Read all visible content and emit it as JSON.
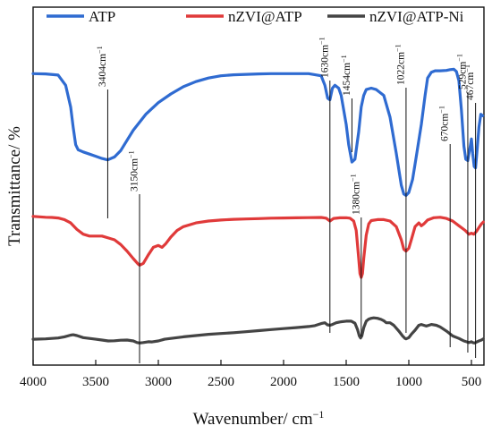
{
  "chart_data": {
    "type": "line",
    "xlabel": "Wavenumber/ cm",
    "xlabel_sup": "−1",
    "ylabel": "Transmittance/ %",
    "xlim": [
      4000,
      400
    ],
    "x_ticks": [
      4000,
      3500,
      3000,
      2500,
      2000,
      1500,
      1000,
      500
    ],
    "x_tick_labels": [
      "4000",
      "3500",
      "3000",
      "2500",
      "2000",
      "1500",
      "1000",
      "500"
    ],
    "y_ticks": "none",
    "grid": false,
    "legend_placement": "top",
    "series": [
      {
        "name": "ATP",
        "color": "#2f6bd1",
        "points": [
          [
            4000,
            0.15
          ],
          [
            3900,
            0.152
          ],
          [
            3800,
            0.16
          ],
          [
            3740,
            0.23
          ],
          [
            3700,
            0.38
          ],
          [
            3680,
            0.52
          ],
          [
            3660,
            0.64
          ],
          [
            3640,
            0.675
          ],
          [
            3600,
            0.69
          ],
          [
            3550,
            0.705
          ],
          [
            3500,
            0.72
          ],
          [
            3450,
            0.735
          ],
          [
            3404,
            0.745
          ],
          [
            3350,
            0.725
          ],
          [
            3300,
            0.68
          ],
          [
            3250,
            0.61
          ],
          [
            3200,
            0.54
          ],
          [
            3100,
            0.43
          ],
          [
            3000,
            0.35
          ],
          [
            2900,
            0.29
          ],
          [
            2800,
            0.24
          ],
          [
            2700,
            0.205
          ],
          [
            2600,
            0.18
          ],
          [
            2500,
            0.165
          ],
          [
            2400,
            0.158
          ],
          [
            2300,
            0.155
          ],
          [
            2200,
            0.152
          ],
          [
            2100,
            0.15
          ],
          [
            2000,
            0.15
          ],
          [
            1900,
            0.15
          ],
          [
            1800,
            0.15
          ],
          [
            1700,
            0.165
          ],
          [
            1670,
            0.23
          ],
          [
            1648,
            0.32
          ],
          [
            1630,
            0.33
          ],
          [
            1610,
            0.25
          ],
          [
            1590,
            0.23
          ],
          [
            1560,
            0.25
          ],
          [
            1540,
            0.3
          ],
          [
            1500,
            0.5
          ],
          [
            1480,
            0.64
          ],
          [
            1454,
            0.76
          ],
          [
            1430,
            0.74
          ],
          [
            1400,
            0.55
          ],
          [
            1380,
            0.38
          ],
          [
            1360,
            0.3
          ],
          [
            1340,
            0.26
          ],
          [
            1300,
            0.25
          ],
          [
            1260,
            0.26
          ],
          [
            1200,
            0.3
          ],
          [
            1150,
            0.45
          ],
          [
            1100,
            0.7
          ],
          [
            1060,
            0.92
          ],
          [
            1040,
            0.98
          ],
          [
            1022,
            0.99
          ],
          [
            1000,
            0.97
          ],
          [
            970,
            0.88
          ],
          [
            940,
            0.72
          ],
          [
            900,
            0.5
          ],
          [
            870,
            0.3
          ],
          [
            850,
            0.18
          ],
          [
            820,
            0.14
          ],
          [
            790,
            0.13
          ],
          [
            750,
            0.13
          ],
          [
            700,
            0.128
          ],
          [
            670,
            0.122
          ],
          [
            640,
            0.12
          ],
          [
            620,
            0.135
          ],
          [
            600,
            0.2
          ],
          [
            580,
            0.4
          ],
          [
            560,
            0.65
          ],
          [
            545,
            0.74
          ],
          [
            529,
            0.75
          ],
          [
            515,
            0.68
          ],
          [
            500,
            0.6
          ],
          [
            490,
            0.7
          ],
          [
            478,
            0.79
          ],
          [
            467,
            0.8
          ],
          [
            455,
            0.68
          ],
          [
            440,
            0.52
          ],
          [
            425,
            0.43
          ],
          [
            410,
            0.44
          ]
        ]
      },
      {
        "name": "nZVI@ATP",
        "color": "#e03a3a",
        "points": [
          [
            4000,
            0.35
          ],
          [
            3950,
            0.355
          ],
          [
            3900,
            0.36
          ],
          [
            3850,
            0.362
          ],
          [
            3800,
            0.368
          ],
          [
            3750,
            0.385
          ],
          [
            3700,
            0.42
          ],
          [
            3650,
            0.49
          ],
          [
            3600,
            0.54
          ],
          [
            3550,
            0.56
          ],
          [
            3500,
            0.56
          ],
          [
            3450,
            0.56
          ],
          [
            3400,
            0.58
          ],
          [
            3350,
            0.6
          ],
          [
            3300,
            0.65
          ],
          [
            3250,
            0.72
          ],
          [
            3200,
            0.8
          ],
          [
            3160,
            0.86
          ],
          [
            3150,
            0.87
          ],
          [
            3120,
            0.85
          ],
          [
            3080,
            0.76
          ],
          [
            3040,
            0.68
          ],
          [
            3000,
            0.66
          ],
          [
            2970,
            0.68
          ],
          [
            2940,
            0.64
          ],
          [
            2900,
            0.57
          ],
          [
            2850,
            0.5
          ],
          [
            2800,
            0.46
          ],
          [
            2700,
            0.42
          ],
          [
            2600,
            0.4
          ],
          [
            2500,
            0.39
          ],
          [
            2400,
            0.382
          ],
          [
            2300,
            0.378
          ],
          [
            2200,
            0.374
          ],
          [
            2100,
            0.37
          ],
          [
            2000,
            0.368
          ],
          [
            1900,
            0.366
          ],
          [
            1800,
            0.364
          ],
          [
            1700,
            0.362
          ],
          [
            1660,
            0.37
          ],
          [
            1630,
            0.4
          ],
          [
            1600,
            0.372
          ],
          [
            1550,
            0.366
          ],
          [
            1500,
            0.365
          ],
          [
            1470,
            0.37
          ],
          [
            1440,
            0.4
          ],
          [
            1420,
            0.5
          ],
          [
            1400,
            0.8
          ],
          [
            1390,
            0.96
          ],
          [
            1380,
            1.0
          ],
          [
            1370,
            0.96
          ],
          [
            1360,
            0.8
          ],
          [
            1340,
            0.55
          ],
          [
            1320,
            0.43
          ],
          [
            1300,
            0.395
          ],
          [
            1250,
            0.385
          ],
          [
            1200,
            0.385
          ],
          [
            1150,
            0.4
          ],
          [
            1100,
            0.46
          ],
          [
            1060,
            0.6
          ],
          [
            1040,
            0.7
          ],
          [
            1022,
            0.72
          ],
          [
            1000,
            0.69
          ],
          [
            980,
            0.6
          ],
          [
            950,
            0.46
          ],
          [
            920,
            0.42
          ],
          [
            900,
            0.45
          ],
          [
            880,
            0.43
          ],
          [
            850,
            0.39
          ],
          [
            800,
            0.365
          ],
          [
            750,
            0.36
          ],
          [
            700,
            0.372
          ],
          [
            650,
            0.4
          ],
          [
            600,
            0.45
          ],
          [
            550,
            0.5
          ],
          [
            520,
            0.54
          ],
          [
            500,
            0.53
          ],
          [
            480,
            0.54
          ],
          [
            460,
            0.51
          ],
          [
            440,
            0.47
          ],
          [
            420,
            0.43
          ],
          [
            405,
            0.41
          ]
        ]
      },
      {
        "name": "nZVI@ATP-Ni",
        "color": "#444444",
        "points": [
          [
            4000,
            0.86
          ],
          [
            3900,
            0.855
          ],
          [
            3800,
            0.845
          ],
          [
            3750,
            0.83
          ],
          [
            3700,
            0.81
          ],
          [
            3680,
            0.805
          ],
          [
            3650,
            0.815
          ],
          [
            3600,
            0.84
          ],
          [
            3550,
            0.85
          ],
          [
            3500,
            0.86
          ],
          [
            3450,
            0.87
          ],
          [
            3400,
            0.88
          ],
          [
            3350,
            0.878
          ],
          [
            3300,
            0.872
          ],
          [
            3250,
            0.87
          ],
          [
            3200,
            0.88
          ],
          [
            3170,
            0.9
          ],
          [
            3150,
            0.905
          ],
          [
            3120,
            0.9
          ],
          [
            3080,
            0.89
          ],
          [
            3050,
            0.892
          ],
          [
            3000,
            0.88
          ],
          [
            2950,
            0.86
          ],
          [
            2900,
            0.85
          ],
          [
            2800,
            0.83
          ],
          [
            2700,
            0.815
          ],
          [
            2600,
            0.8
          ],
          [
            2500,
            0.79
          ],
          [
            2400,
            0.78
          ],
          [
            2300,
            0.768
          ],
          [
            2200,
            0.755
          ],
          [
            2100,
            0.742
          ],
          [
            2000,
            0.73
          ],
          [
            1900,
            0.718
          ],
          [
            1800,
            0.705
          ],
          [
            1750,
            0.695
          ],
          [
            1700,
            0.67
          ],
          [
            1670,
            0.66
          ],
          [
            1650,
            0.685
          ],
          [
            1630,
            0.69
          ],
          [
            1610,
            0.68
          ],
          [
            1580,
            0.66
          ],
          [
            1550,
            0.65
          ],
          [
            1500,
            0.64
          ],
          [
            1460,
            0.64
          ],
          [
            1430,
            0.665
          ],
          [
            1410,
            0.74
          ],
          [
            1395,
            0.82
          ],
          [
            1385,
            0.845
          ],
          [
            1375,
            0.82
          ],
          [
            1360,
            0.72
          ],
          [
            1340,
            0.64
          ],
          [
            1320,
            0.615
          ],
          [
            1300,
            0.605
          ],
          [
            1280,
            0.6
          ],
          [
            1250,
            0.605
          ],
          [
            1220,
            0.62
          ],
          [
            1200,
            0.635
          ],
          [
            1180,
            0.66
          ],
          [
            1150,
            0.66
          ],
          [
            1120,
            0.69
          ],
          [
            1080,
            0.76
          ],
          [
            1050,
            0.82
          ],
          [
            1030,
            0.85
          ],
          [
            1022,
            0.855
          ],
          [
            1000,
            0.84
          ],
          [
            980,
            0.8
          ],
          [
            950,
            0.75
          ],
          [
            920,
            0.69
          ],
          [
            900,
            0.68
          ],
          [
            880,
            0.69
          ],
          [
            860,
            0.7
          ],
          [
            820,
            0.68
          ],
          [
            780,
            0.69
          ],
          [
            750,
            0.71
          ],
          [
            700,
            0.76
          ],
          [
            650,
            0.82
          ],
          [
            600,
            0.85
          ],
          [
            560,
            0.88
          ],
          [
            540,
            0.89
          ],
          [
            520,
            0.9
          ],
          [
            500,
            0.89
          ],
          [
            490,
            0.9
          ],
          [
            475,
            0.905
          ],
          [
            460,
            0.895
          ],
          [
            440,
            0.88
          ],
          [
            420,
            0.87
          ],
          [
            405,
            0.855
          ]
        ]
      }
    ],
    "annotations": [
      {
        "label": "3404cm",
        "sup": "−1",
        "x": 3404
      },
      {
        "label": "3150cm",
        "sup": "−1",
        "x": 3150
      },
      {
        "label": "1630cm",
        "sup": "−1",
        "x": 1630
      },
      {
        "label": "1454cm",
        "sup": "−1",
        "x": 1454
      },
      {
        "label": "1380cm",
        "sup": "−1",
        "x": 1380
      },
      {
        "label": "1022cm",
        "sup": "−1",
        "x": 1022
      },
      {
        "label": "670cm",
        "sup": "−1",
        "x": 670
      },
      {
        "label": "529cm",
        "sup": "−1",
        "x": 529
      },
      {
        "label": "467cm",
        "sup": "−1",
        "x": 467
      }
    ]
  }
}
